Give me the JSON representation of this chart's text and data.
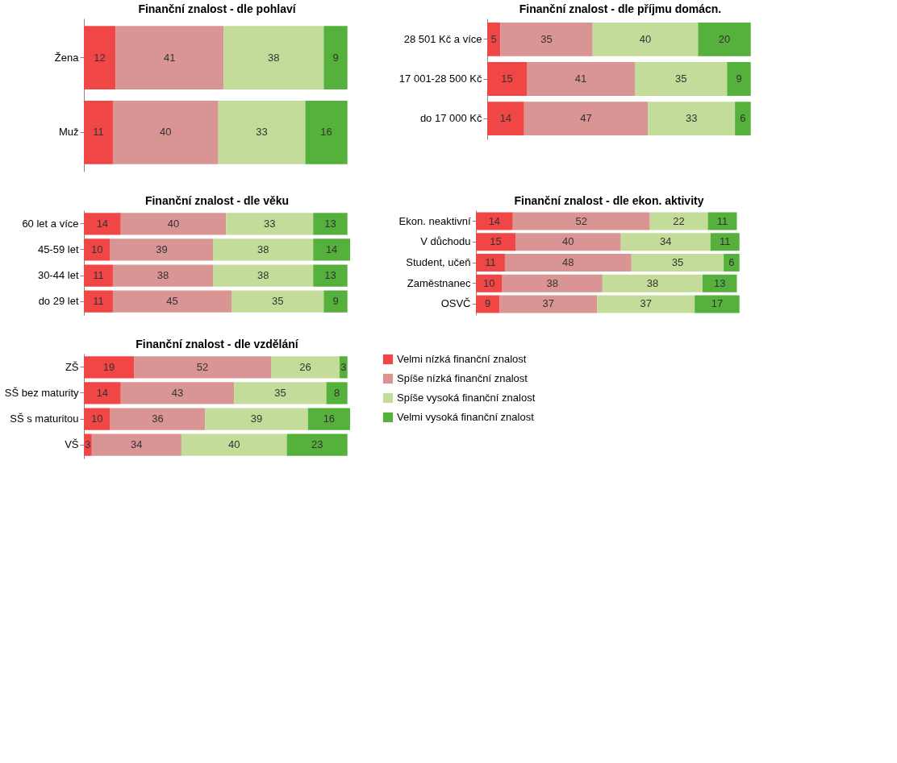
{
  "chart_data": [
    {
      "type": "bar",
      "orientation": "horizontal",
      "stacked": true,
      "title": "Finanční znalost - dle pohlaví",
      "categories": [
        "Žena",
        "Muž"
      ],
      "xlim": [
        0,
        101
      ],
      "tick_labels": "y",
      "data_labels": true,
      "legend": false,
      "series": [
        {
          "color": "#f04646",
          "values": [
            12,
            11
          ]
        },
        {
          "color": "#d99594",
          "values": [
            41,
            40
          ]
        },
        {
          "color": "#c3dc9a",
          "values": [
            38,
            33
          ]
        },
        {
          "color": "#55b03c",
          "values": [
            9,
            16
          ]
        }
      ]
    },
    {
      "type": "bar",
      "orientation": "horizontal",
      "stacked": true,
      "title": "Finanční znalost - dle příjmu domácn.",
      "categories": [
        "28 501 Kč a více",
        "17 001-28 500 Kč",
        "do 17 000 Kč"
      ],
      "xlim": [
        0,
        101
      ],
      "tick_labels": "y",
      "data_labels": true,
      "legend": false,
      "series": [
        {
          "color": "#f04646",
          "values": [
            5,
            15,
            14
          ]
        },
        {
          "color": "#d99594",
          "values": [
            35,
            41,
            47
          ]
        },
        {
          "color": "#c3dc9a",
          "values": [
            40,
            35,
            33
          ]
        },
        {
          "color": "#55b03c",
          "values": [
            20,
            9,
            6
          ]
        }
      ]
    },
    {
      "type": "bar",
      "orientation": "horizontal",
      "stacked": true,
      "title": "Finanční znalost - dle věku",
      "categories": [
        "60 let a více",
        "45-59 let",
        "30-44 let",
        "do 29 let"
      ],
      "xlim": [
        0,
        101
      ],
      "tick_labels": "y",
      "data_labels": true,
      "legend": false,
      "series": [
        {
          "color": "#f04646",
          "values": [
            14,
            10,
            11,
            11
          ]
        },
        {
          "color": "#d99594",
          "values": [
            40,
            39,
            38,
            45
          ]
        },
        {
          "color": "#c3dc9a",
          "values": [
            33,
            38,
            38,
            35
          ]
        },
        {
          "color": "#55b03c",
          "values": [
            13,
            14,
            13,
            9
          ]
        }
      ]
    },
    {
      "type": "bar",
      "orientation": "horizontal",
      "stacked": true,
      "title": "Finanční znalost - dle ekon. aktivity",
      "categories": [
        "Ekon. neaktivní",
        "V důchodu",
        "Student, učeň",
        "Zaměstnanec",
        "OSVČ"
      ],
      "xlim": [
        0,
        101
      ],
      "tick_labels": "y",
      "data_labels": true,
      "legend": false,
      "series": [
        {
          "color": "#f04646",
          "values": [
            14,
            15,
            11,
            10,
            9
          ]
        },
        {
          "color": "#d99594",
          "values": [
            52,
            40,
            48,
            38,
            37
          ]
        },
        {
          "color": "#c3dc9a",
          "values": [
            22,
            34,
            35,
            38,
            37
          ]
        },
        {
          "color": "#55b03c",
          "values": [
            11,
            11,
            6,
            13,
            17
          ]
        }
      ]
    },
    {
      "type": "bar",
      "orientation": "horizontal",
      "stacked": true,
      "title": "Finanční znalost - dle vzdělání",
      "categories": [
        "ZŠ",
        "SŠ bez maturity",
        "SŠ s maturitou",
        "VŠ"
      ],
      "xlim": [
        0,
        101
      ],
      "tick_labels": "y",
      "data_labels": true,
      "legend": "right",
      "series": [
        {
          "name": "Velmi nízká finanční znalost",
          "color": "#f04646",
          "values": [
            19,
            14,
            10,
            3
          ]
        },
        {
          "name": "Spíše nízká finanční znalost",
          "color": "#d99594",
          "values": [
            52,
            43,
            36,
            34
          ]
        },
        {
          "name": "Spíše vysoká finanční znalost",
          "color": "#c3dc9a",
          "values": [
            26,
            35,
            39,
            40
          ]
        },
        {
          "name": "Velmi vysoká finanční znalost",
          "color": "#55b03c",
          "values": [
            3,
            8,
            16,
            23
          ]
        }
      ]
    }
  ]
}
